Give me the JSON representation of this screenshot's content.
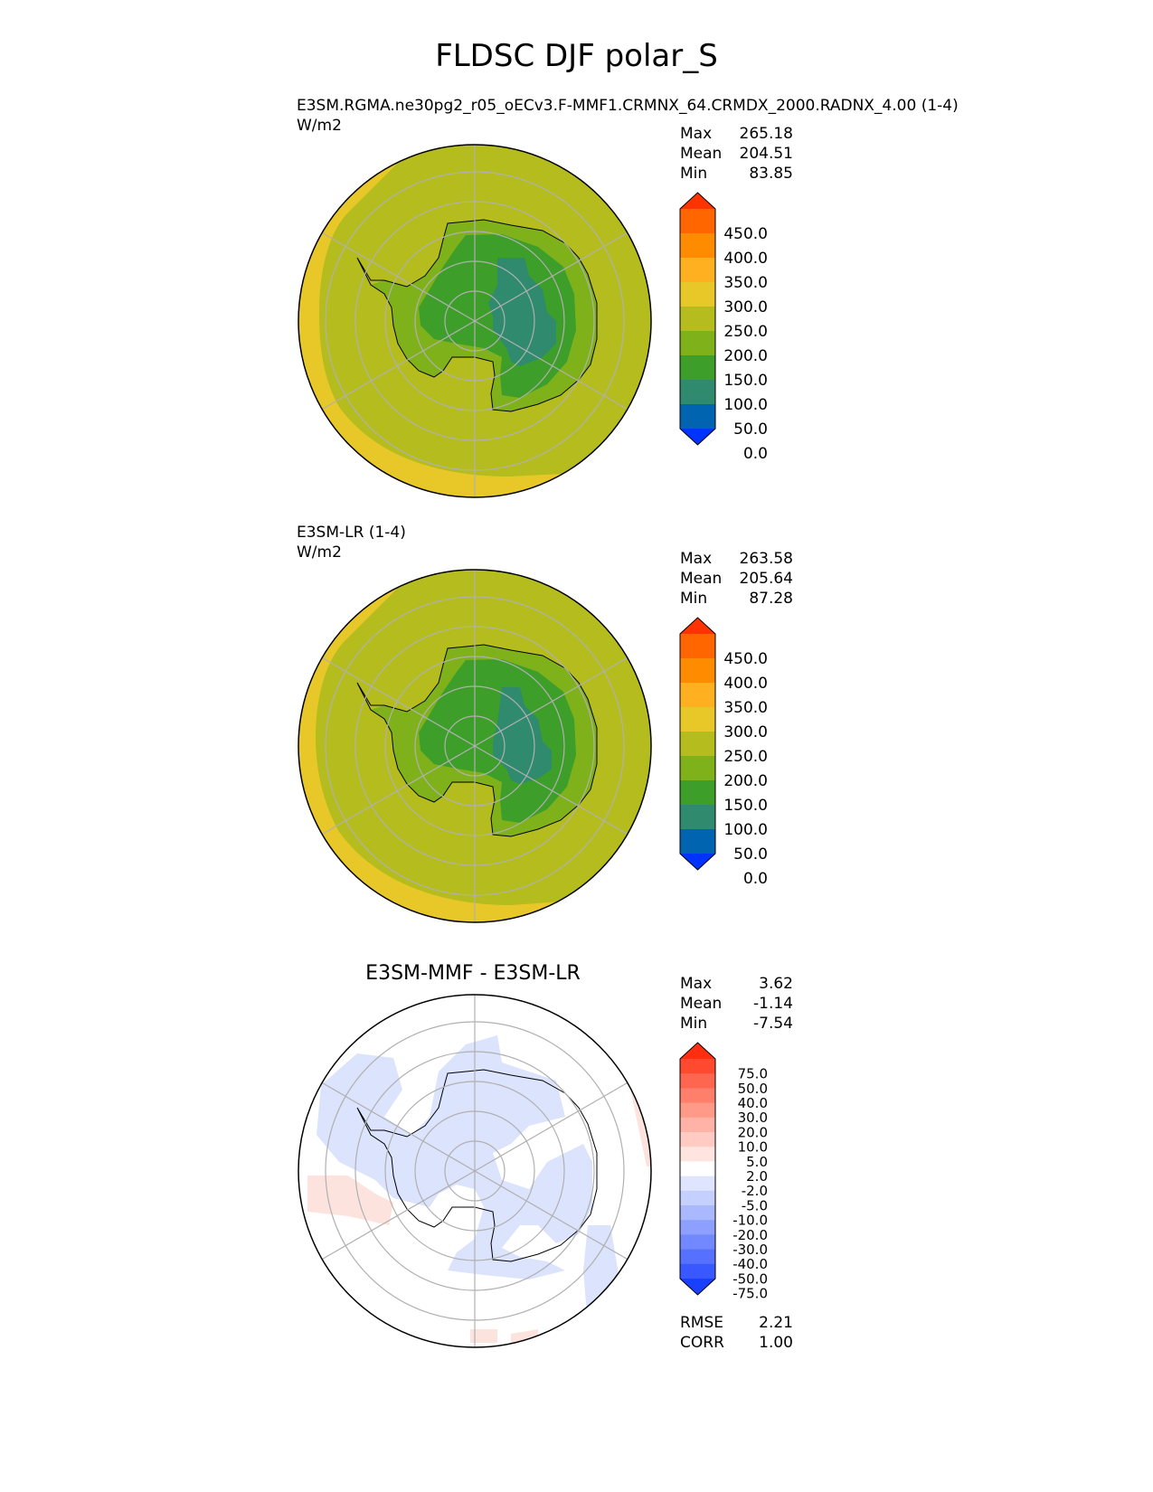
{
  "figure": {
    "title": "FLDSC DJF polar_S"
  },
  "panels": [
    {
      "id": "test",
      "title": "E3SM.RGMA.ne30pg2_r05_oECv3.F-MMF1.CRMNX_64.CRMDX_2000.RADNX_4.00 (1-4)",
      "units": "W/m2",
      "stats": [
        {
          "label": "Max",
          "value": "265.18"
        },
        {
          "label": "Mean",
          "value": "204.51"
        },
        {
          "label": "Min",
          "value": "83.85"
        }
      ]
    },
    {
      "id": "reference",
      "title": "E3SM-LR (1-4)",
      "units": "W/m2",
      "stats": [
        {
          "label": "Max",
          "value": "263.58"
        },
        {
          "label": "Mean",
          "value": "205.64"
        },
        {
          "label": "Min",
          "value": "87.28"
        }
      ]
    },
    {
      "id": "difference",
      "title": "E3SM-MMF - E3SM-LR",
      "stats": [
        {
          "label": "Max",
          "value": "3.62"
        },
        {
          "label": "Mean",
          "value": "-1.14"
        },
        {
          "label": "Min",
          "value": "-7.54"
        }
      ],
      "metrics": [
        {
          "label": "RMSE",
          "value": "2.21"
        },
        {
          "label": "CORR",
          "value": "1.00"
        }
      ]
    }
  ],
  "colorbars": {
    "main": {
      "ticks": [
        "450.0",
        "400.0",
        "350.0",
        "300.0",
        "250.0",
        "200.0",
        "150.0",
        "100.0",
        "50.0",
        "0.0"
      ],
      "colors": [
        "#ff3300",
        "#ff6600",
        "#ff8c00",
        "#ffb020",
        "#e8c828",
        "#b5bd1e",
        "#7fb21a",
        "#3e9e2a",
        "#2f8a6e",
        "#0064b0",
        "#0033ff"
      ]
    },
    "diff": {
      "ticks": [
        "75.0",
        "50.0",
        "40.0",
        "30.0",
        "20.0",
        "10.0",
        "5.0",
        "2.0",
        "-2.0",
        "-5.0",
        "-10.0",
        "-20.0",
        "-30.0",
        "-40.0",
        "-50.0",
        "-75.0"
      ],
      "colors": [
        "#ff2e10",
        "#ff4a30",
        "#ff6650",
        "#ff7f6a",
        "#ff9988",
        "#ffb2a5",
        "#ffcbc2",
        "#ffe4df",
        "#ffffff",
        "#dfe5ff",
        "#c6d0ff",
        "#aab8ff",
        "#8ea0ff",
        "#7288ff",
        "#5670ff",
        "#3a58ff",
        "#1a40ff"
      ]
    }
  },
  "map_colors": {
    "ocean_outer": "#e8c828",
    "ocean": "#b5bd1e",
    "land_edge": "#7fb21a",
    "land_mid": "#3e9e2a",
    "land_core": "#2f8a6e",
    "diff_neg": "#dce3fc",
    "diff_pos": "#fde3de",
    "grid": "#b0b0b0"
  }
}
